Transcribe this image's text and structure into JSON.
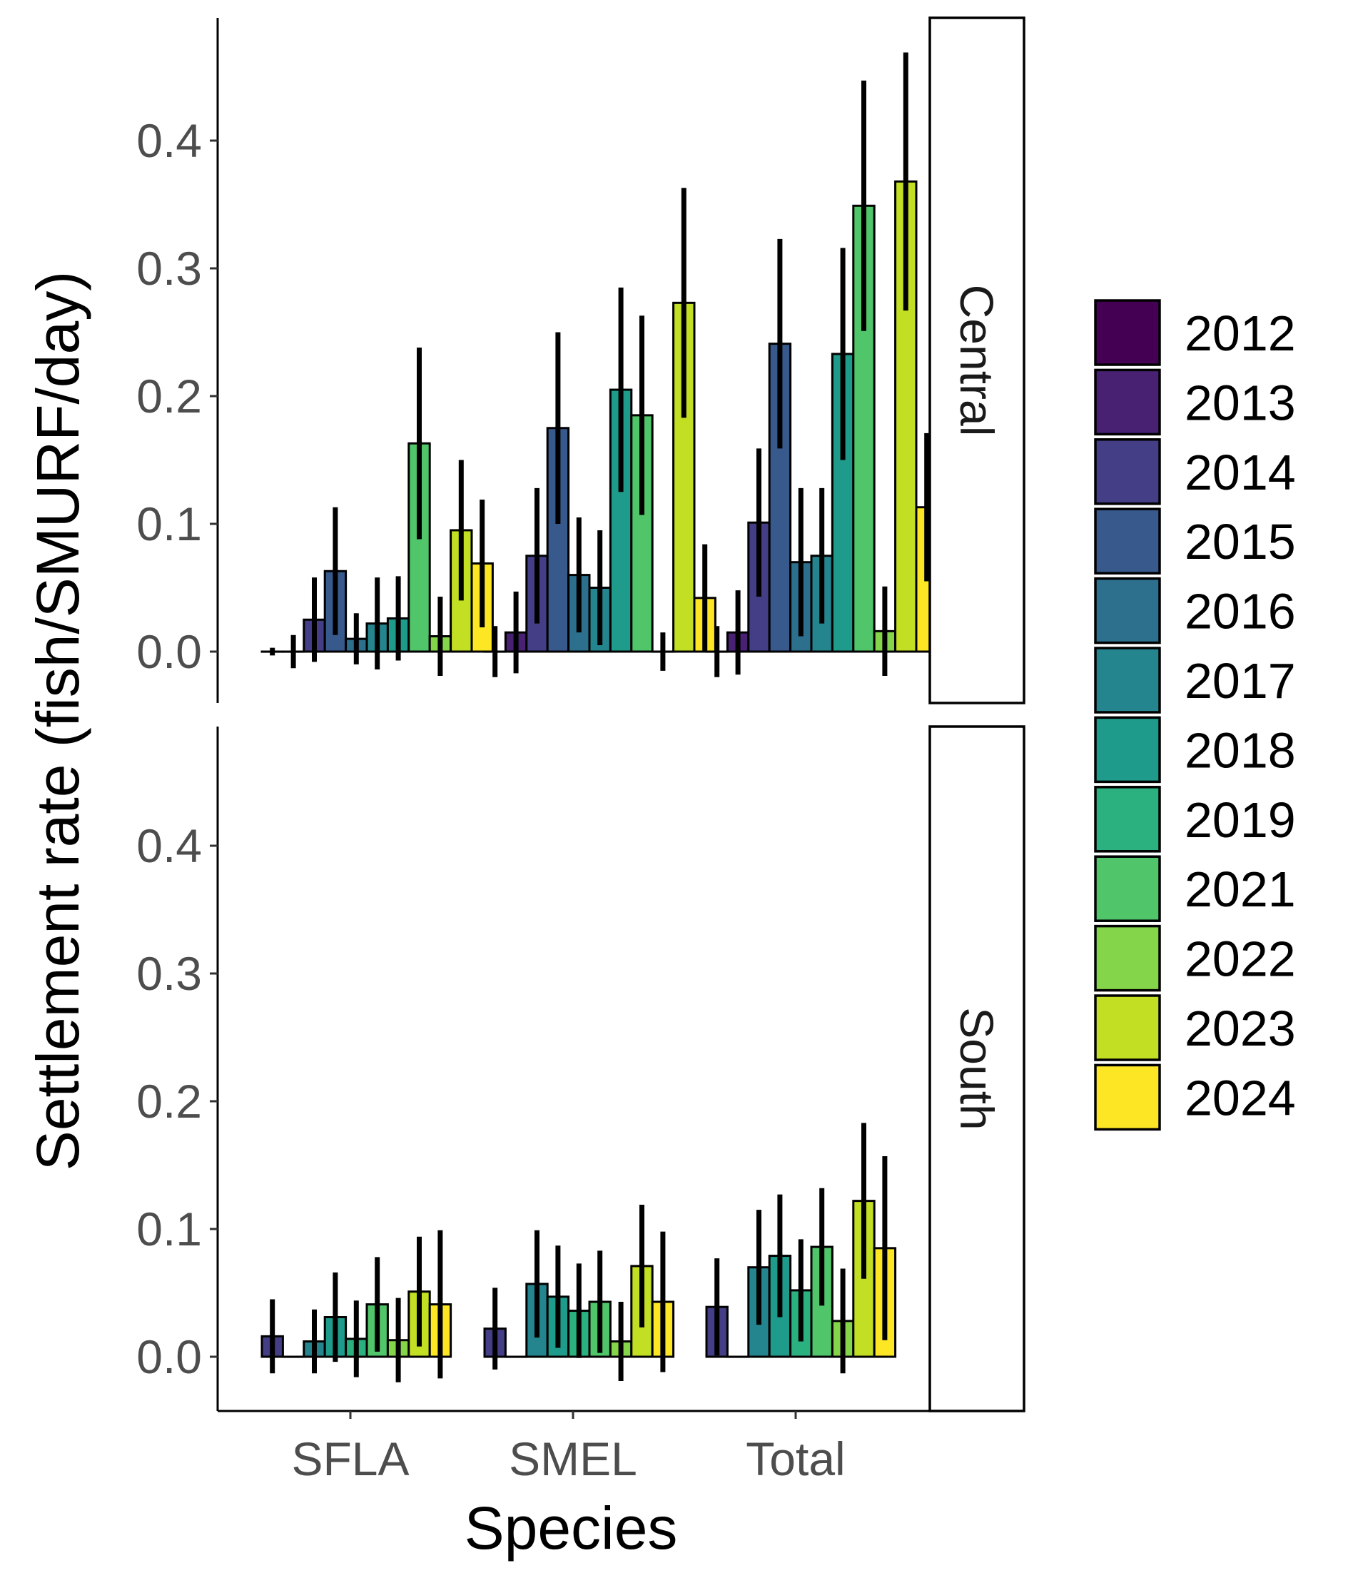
{
  "chart_data": {
    "type": "bar",
    "ylabel": "Settlement rate  (fish/SMURF/day)",
    "xlabel": "Species",
    "categories": [
      "SFLA",
      "SMEL",
      "Total"
    ],
    "ylim": [
      -0.04,
      0.49
    ],
    "yticks": [
      0.0,
      0.1,
      0.2,
      0.3,
      0.4
    ],
    "ytick_labels": [
      "0.0",
      "0.1",
      "0.2",
      "0.3",
      "0.4"
    ],
    "grid": false,
    "legend_position": "right",
    "years": [
      "2012",
      "2013",
      "2014",
      "2015",
      "2016",
      "2017",
      "2018",
      "2019",
      "2021",
      "2022",
      "2023",
      "2024"
    ],
    "colors": [
      "#440154",
      "#482173",
      "#433E85",
      "#38598C",
      "#2D708E",
      "#25858E",
      "#1E9B8A",
      "#2BB07F",
      "#51C56A",
      "#85D54A",
      "#C2DF23",
      "#FDE725"
    ],
    "panels": [
      {
        "name": "Central",
        "values": [
          [
            0.0,
            0.0,
            0.025,
            0.063,
            0.01,
            0.022,
            0.026,
            0.163,
            0.012,
            0.095,
            0.069
          ],
          [
            0.0,
            0.015,
            0.075,
            0.175,
            0.06,
            0.05,
            0.205,
            0.185,
            0.0,
            0.273,
            0.042
          ],
          [
            0.0,
            0.015,
            0.101,
            0.241,
            0.07,
            0.075,
            0.233,
            0.349,
            0.016,
            0.368,
            0.113
          ]
        ],
        "errors": [
          [
            0.003,
            0.013,
            0.033,
            0.05,
            0.02,
            0.036,
            0.033,
            0.075,
            0.031,
            0.055,
            0.05
          ],
          [
            0.02,
            0.032,
            0.053,
            0.075,
            0.045,
            0.045,
            0.08,
            0.078,
            0.015,
            0.09,
            0.042
          ],
          [
            0.02,
            0.033,
            0.058,
            0.082,
            0.058,
            0.053,
            0.083,
            0.098,
            0.035,
            0.101,
            0.058
          ]
        ]
      },
      {
        "name": "South",
        "values": [
          [
            0.016,
            0.0,
            0.012,
            0.031,
            0.014,
            0.041,
            0.013,
            0.051,
            0.041
          ],
          [
            0.022,
            0.0,
            0.057,
            0.047,
            0.036,
            0.043,
            0.012,
            0.071,
            0.043
          ],
          [
            0.039,
            0.0,
            0.07,
            0.079,
            0.052,
            0.086,
            0.028,
            0.122,
            0.085
          ]
        ],
        "errors": [
          [
            0.029,
            0.0,
            0.025,
            0.035,
            0.03,
            0.037,
            0.033,
            0.043,
            0.058
          ],
          [
            0.032,
            0.0,
            0.042,
            0.04,
            0.037,
            0.04,
            0.031,
            0.048,
            0.055
          ],
          [
            0.038,
            0.0,
            0.045,
            0.048,
            0.04,
            0.046,
            0.041,
            0.061,
            0.072
          ]
        ]
      }
    ]
  }
}
